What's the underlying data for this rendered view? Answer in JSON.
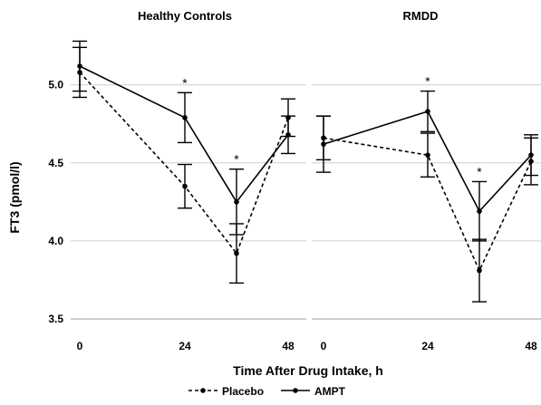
{
  "chart_data": {
    "type": "line",
    "ylabel": "FT3 (pmol/l)",
    "xlabel": "Time After Drug Intake, h",
    "ylim": [
      3.5,
      5.3
    ],
    "yticks": [
      3.5,
      4.0,
      4.5,
      5.0
    ],
    "ytick_labels": [
      "3.5",
      "4.0",
      "4.5",
      "5.0"
    ],
    "xticks": [
      0,
      24,
      48
    ],
    "xtick_labels": [
      "0",
      "24",
      "48"
    ],
    "grid": "horizontal",
    "legend_position": "bottom",
    "legend": [
      {
        "name": "Placebo",
        "style": "dashed"
      },
      {
        "name": "AMPT",
        "style": "solid"
      }
    ],
    "panels": [
      {
        "title": "Healthy Controls",
        "x": [
          0,
          24,
          36,
          48
        ],
        "series": [
          {
            "name": "Placebo",
            "style": "dashed",
            "values": [
              5.08,
              4.35,
              3.92,
              4.79
            ],
            "err": [
              0.16,
              0.14,
              0.19,
              0.12
            ]
          },
          {
            "name": "AMPT",
            "style": "solid",
            "values": [
              5.12,
              4.79,
              4.25,
              4.68
            ],
            "err": [
              0.16,
              0.16,
              0.21,
              0.12
            ]
          }
        ],
        "annotations": [
          {
            "x": 24,
            "text": "*"
          },
          {
            "x": 36,
            "text": "*"
          }
        ]
      },
      {
        "title": "RMDD",
        "x": [
          0,
          24,
          36,
          48
        ],
        "series": [
          {
            "name": "Placebo",
            "style": "dashed",
            "values": [
              4.66,
              4.55,
              3.81,
              4.51
            ],
            "err": [
              0.14,
              0.14,
              0.2,
              0.15
            ]
          },
          {
            "name": "AMPT",
            "style": "solid",
            "values": [
              4.62,
              4.83,
              4.19,
              4.55
            ],
            "err": [
              0.18,
              0.13,
              0.19,
              0.13
            ]
          }
        ],
        "annotations": [
          {
            "x": 24,
            "text": "*"
          },
          {
            "x": 36,
            "text": "*"
          }
        ]
      }
    ]
  }
}
